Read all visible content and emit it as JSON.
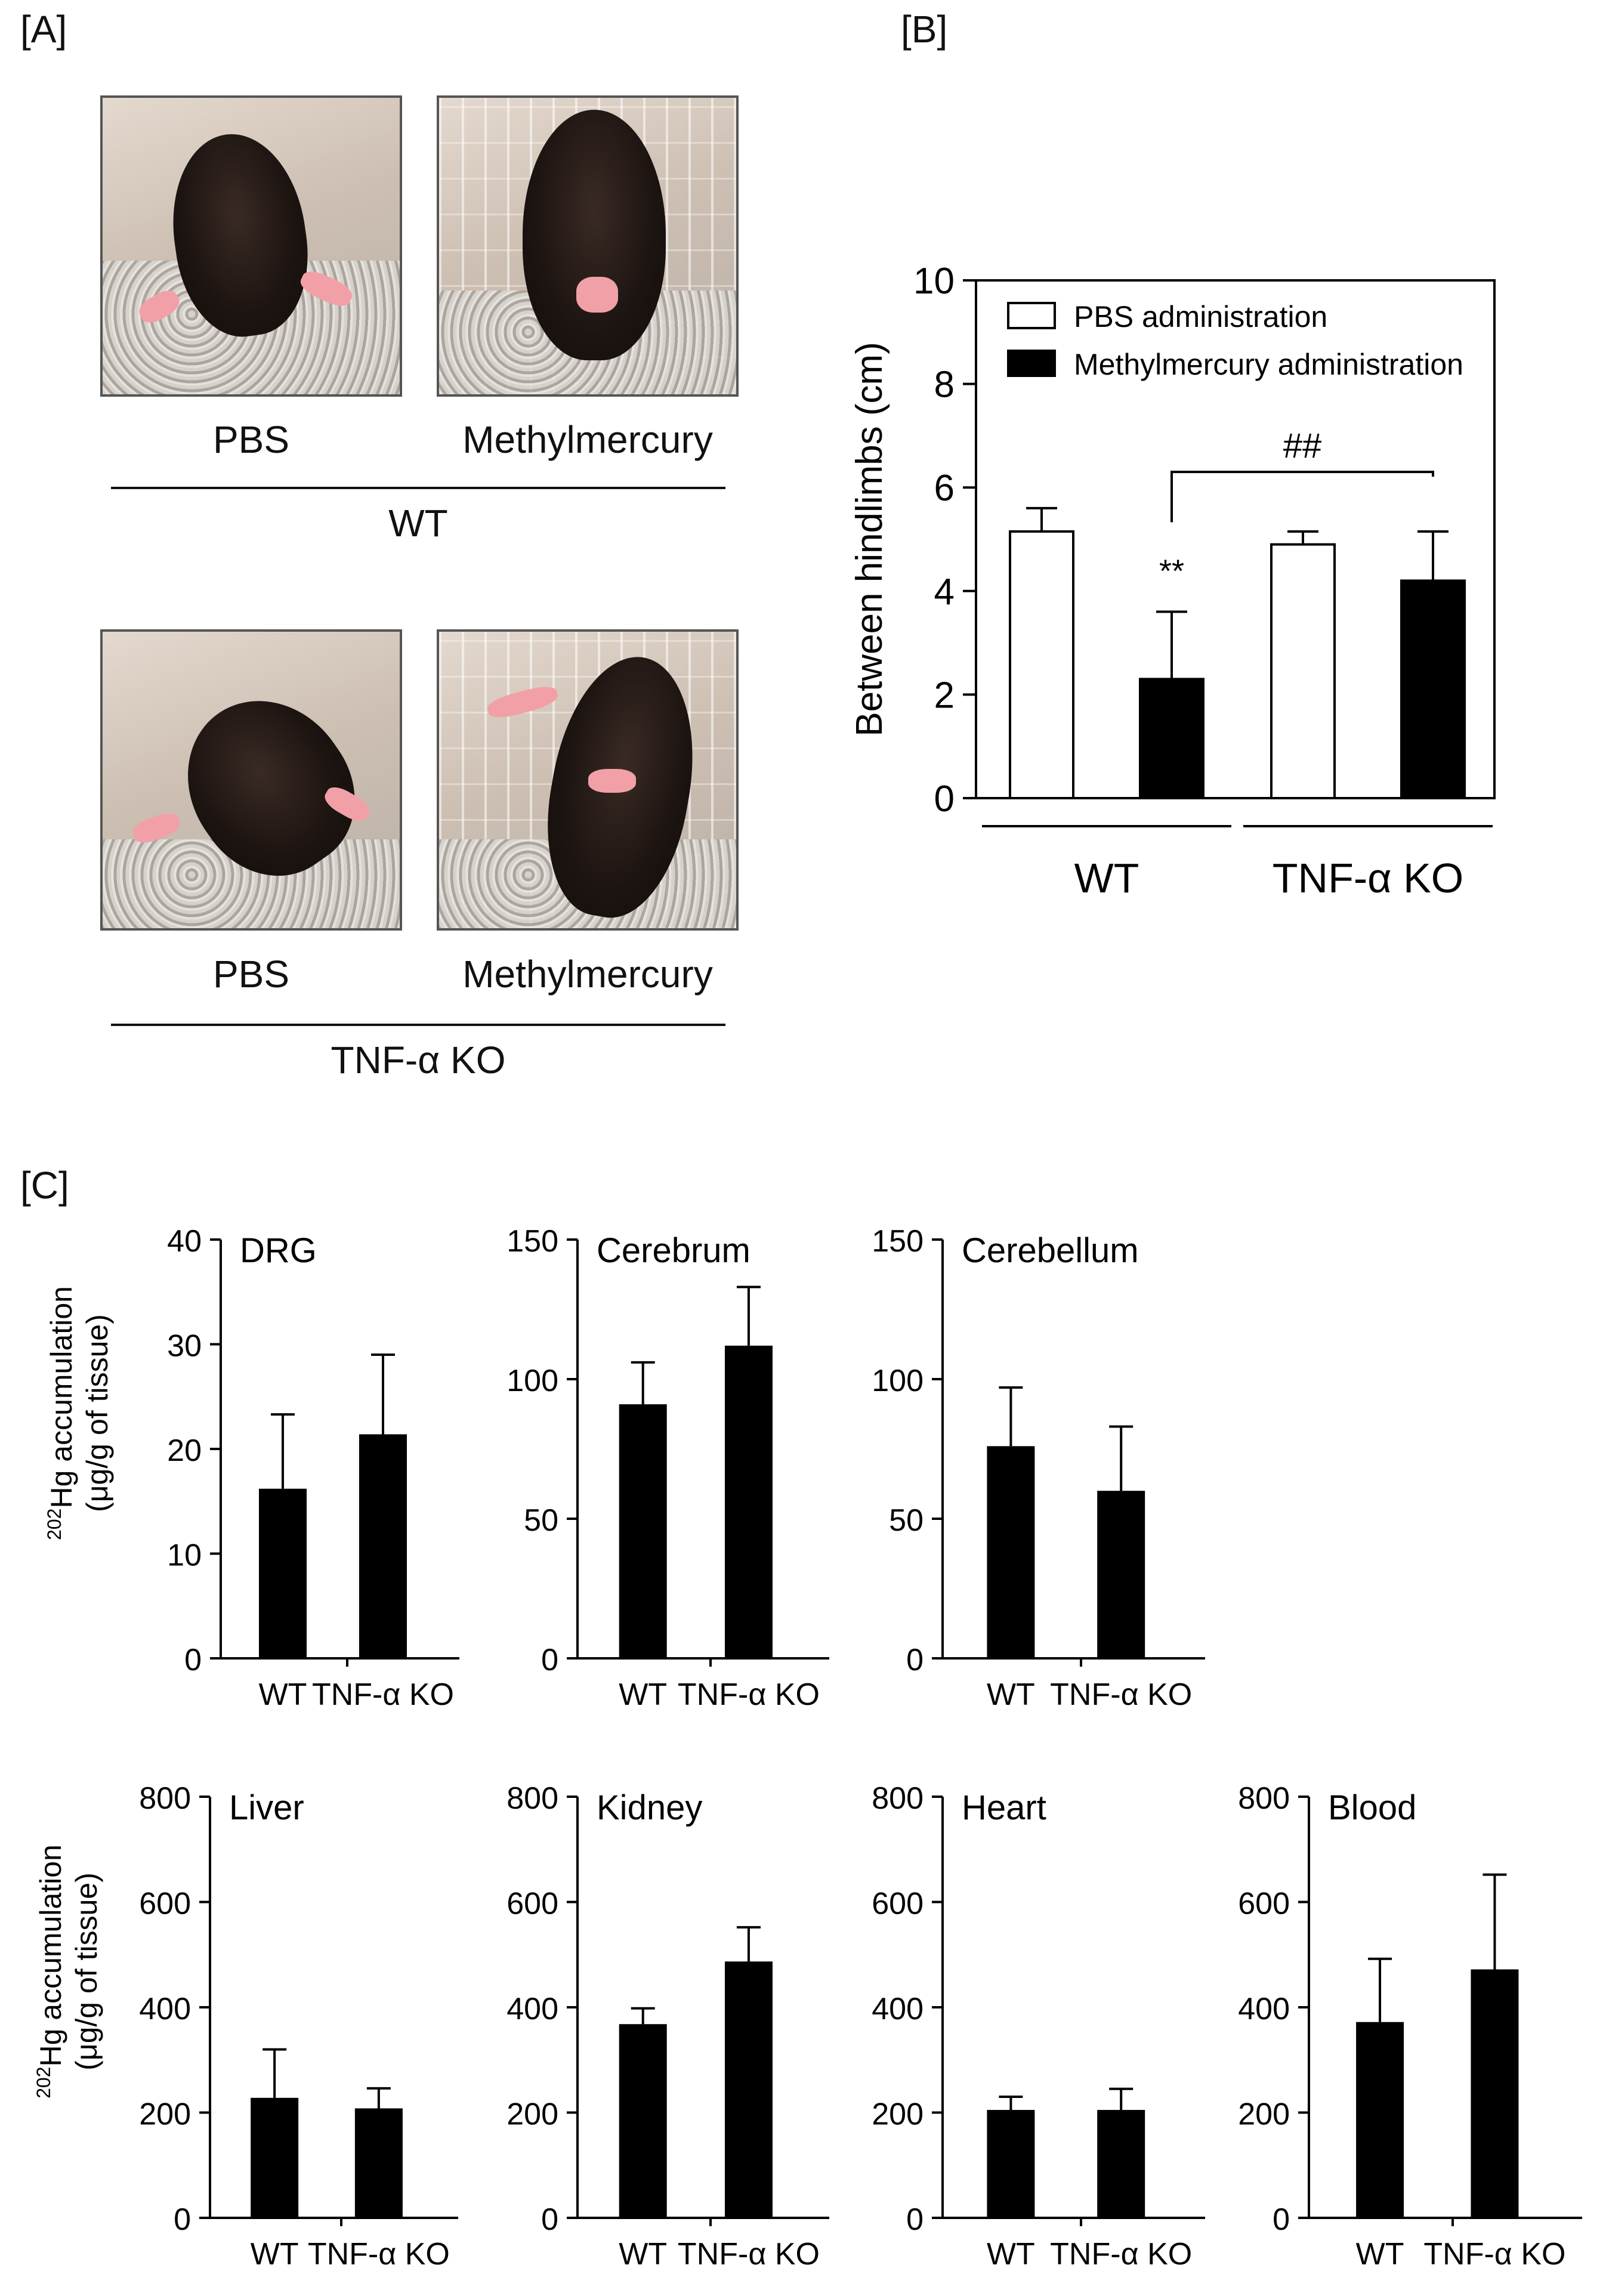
{
  "panels": {
    "A": {
      "label": "[A]",
      "photos": [
        {
          "caption": "PBS"
        },
        {
          "caption": "Methylmercury"
        },
        {
          "caption": "PBS"
        },
        {
          "caption": "Methylmercury"
        }
      ],
      "group_top": "WT",
      "group_bottom": "TNF-α KO"
    },
    "B": {
      "label": "[B]"
    },
    "C": {
      "label": "[C]"
    }
  },
  "chart_data": [
    {
      "id": "B",
      "type": "bar",
      "ylabel": "Between hindlimbs (cm)",
      "ylim": [
        0,
        10
      ],
      "yticks": [
        0,
        2,
        4,
        6,
        8,
        10
      ],
      "groups": [
        "WT",
        "TNF-α KO"
      ],
      "series": [
        {
          "name": "PBS administration",
          "fill": "#ffffff",
          "values": [
            5.15,
            4.9
          ],
          "errors": [
            0.45,
            0.25
          ]
        },
        {
          "name": "Methylmercury administration",
          "fill": "#000000",
          "values": [
            2.3,
            4.2
          ],
          "errors": [
            1.3,
            0.95
          ]
        }
      ],
      "annotations": [
        {
          "text": "**",
          "at": "WT Methylmercury"
        },
        {
          "text": "##",
          "between": [
            "WT Methylmercury",
            "TNF-α KO Methylmercury"
          ]
        }
      ],
      "legend": "top-left"
    },
    {
      "id": "C-DRG",
      "type": "bar",
      "title": "DRG",
      "ylabel": "202Hg accumulation (μg/g of tissue)",
      "ylim": [
        0,
        40
      ],
      "yticks": [
        0,
        10,
        20,
        30,
        40
      ],
      "categories": [
        "WT",
        "TNF-α KO"
      ],
      "values": [
        16.2,
        21.4
      ],
      "errors": [
        7.1,
        7.6
      ]
    },
    {
      "id": "C-Cerebrum",
      "type": "bar",
      "title": "Cerebrum",
      "ylim": [
        0,
        150
      ],
      "yticks": [
        0,
        50,
        100,
        150
      ],
      "categories": [
        "WT",
        "TNF-α KO"
      ],
      "values": [
        91,
        112
      ],
      "errors": [
        15,
        21
      ]
    },
    {
      "id": "C-Cerebellum",
      "type": "bar",
      "title": "Cerebellum",
      "ylim": [
        0,
        150
      ],
      "yticks": [
        0,
        50,
        100,
        150
      ],
      "categories": [
        "WT",
        "TNF-α KO"
      ],
      "values": [
        76,
        60
      ],
      "errors": [
        21,
        23
      ]
    },
    {
      "id": "C-Liver",
      "type": "bar",
      "title": "Liver",
      "ylabel": "202Hg accumulation (μg/g of tissue)",
      "ylim": [
        0,
        800
      ],
      "yticks": [
        0,
        200,
        400,
        600,
        800
      ],
      "categories": [
        "WT",
        "TNF-α KO"
      ],
      "values": [
        228,
        208
      ],
      "errors": [
        92,
        38
      ]
    },
    {
      "id": "C-Kidney",
      "type": "bar",
      "title": "Kidney",
      "ylim": [
        0,
        800
      ],
      "yticks": [
        0,
        200,
        400,
        600,
        800
      ],
      "categories": [
        "WT",
        "TNF-α KO"
      ],
      "values": [
        368,
        487
      ],
      "errors": [
        30,
        65
      ]
    },
    {
      "id": "C-Heart",
      "type": "bar",
      "title": "Heart",
      "ylim": [
        0,
        800
      ],
      "yticks": [
        0,
        200,
        400,
        600,
        800
      ],
      "categories": [
        "WT",
        "TNF-α KO"
      ],
      "values": [
        205,
        205
      ],
      "errors": [
        25,
        40
      ]
    },
    {
      "id": "C-Blood",
      "type": "bar",
      "title": "Blood",
      "ylim": [
        0,
        800
      ],
      "yticks": [
        0,
        200,
        400,
        600,
        800
      ],
      "categories": [
        "WT",
        "TNF-α KO"
      ],
      "values": [
        372,
        472
      ],
      "errors": [
        120,
        180
      ]
    }
  ]
}
